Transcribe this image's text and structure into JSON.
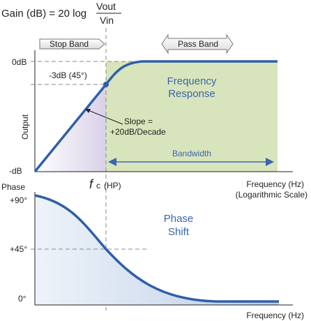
{
  "formula": {
    "prefix": "Gain (dB) = 20 log",
    "numerator": "Vout",
    "denominator": "Vin"
  },
  "bands": {
    "stop": "Stop Band",
    "pass": "Pass Band"
  },
  "gain_plot": {
    "y_top_label": "0dB",
    "y_bottom_label": "-dB",
    "y_axis_title": "Output",
    "corner_label": "-3dB (45°)",
    "slope_line1": "Slope =",
    "slope_line2": "+20dB/Decade",
    "region_title_line1": "Frequency",
    "region_title_line2": "Response",
    "bandwidth": "Bandwidth",
    "x_label_line1": "Frequency (Hz)",
    "x_label_line2": "(Logarithmic Scale)",
    "fc_symbol": "f",
    "fc_subscript": "c",
    "fc_suffix": "(HP)"
  },
  "phase_plot": {
    "y_title": "Phase",
    "y_top_label": "+90°",
    "y_mid_label": "+45°",
    "y_bottom_label": "0°",
    "title_line1": "Phase",
    "title_line2": "Shift",
    "x_label": "Frequency (Hz)"
  },
  "colors": {
    "curve": "#2f5fa8",
    "pass_fill": "#d8e4bc",
    "stop_fill": "#ddd6ea",
    "phase_fill": "#c9d7ea",
    "accent_text": "#3a66ad"
  }
}
